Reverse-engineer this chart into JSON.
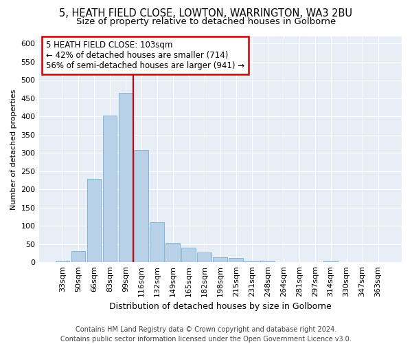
{
  "title1": "5, HEATH FIELD CLOSE, LOWTON, WARRINGTON, WA3 2BU",
  "title2": "Size of property relative to detached houses in Golborne",
  "xlabel": "Distribution of detached houses by size in Golborne",
  "ylabel": "Number of detached properties",
  "categories": [
    "33sqm",
    "50sqm",
    "66sqm",
    "83sqm",
    "99sqm",
    "116sqm",
    "132sqm",
    "149sqm",
    "165sqm",
    "182sqm",
    "198sqm",
    "215sqm",
    "231sqm",
    "248sqm",
    "264sqm",
    "281sqm",
    "297sqm",
    "314sqm",
    "330sqm",
    "347sqm",
    "363sqm"
  ],
  "values": [
    5,
    30,
    228,
    402,
    465,
    307,
    110,
    53,
    40,
    27,
    13,
    11,
    5,
    5,
    0,
    0,
    0,
    5,
    0,
    0,
    0
  ],
  "bar_color": "#b8d0e8",
  "bar_edge_color": "#7aafd4",
  "vline_x": 4.5,
  "vline_color": "#cc0000",
  "annotation_text": "5 HEATH FIELD CLOSE: 103sqm\n← 42% of detached houses are smaller (714)\n56% of semi-detached houses are larger (941) →",
  "annotation_box_color": "white",
  "annotation_box_edge": "#cc0000",
  "ylim": [
    0,
    620
  ],
  "yticks": [
    0,
    50,
    100,
    150,
    200,
    250,
    300,
    350,
    400,
    450,
    500,
    550,
    600
  ],
  "footer1": "Contains HM Land Registry data © Crown copyright and database right 2024.",
  "footer2": "Contains public sector information licensed under the Open Government Licence v3.0.",
  "bg_color": "#e8eef5",
  "title1_fontsize": 10.5,
  "title2_fontsize": 9.5,
  "xlabel_fontsize": 9,
  "ylabel_fontsize": 8,
  "tick_fontsize": 8,
  "footer_fontsize": 7
}
